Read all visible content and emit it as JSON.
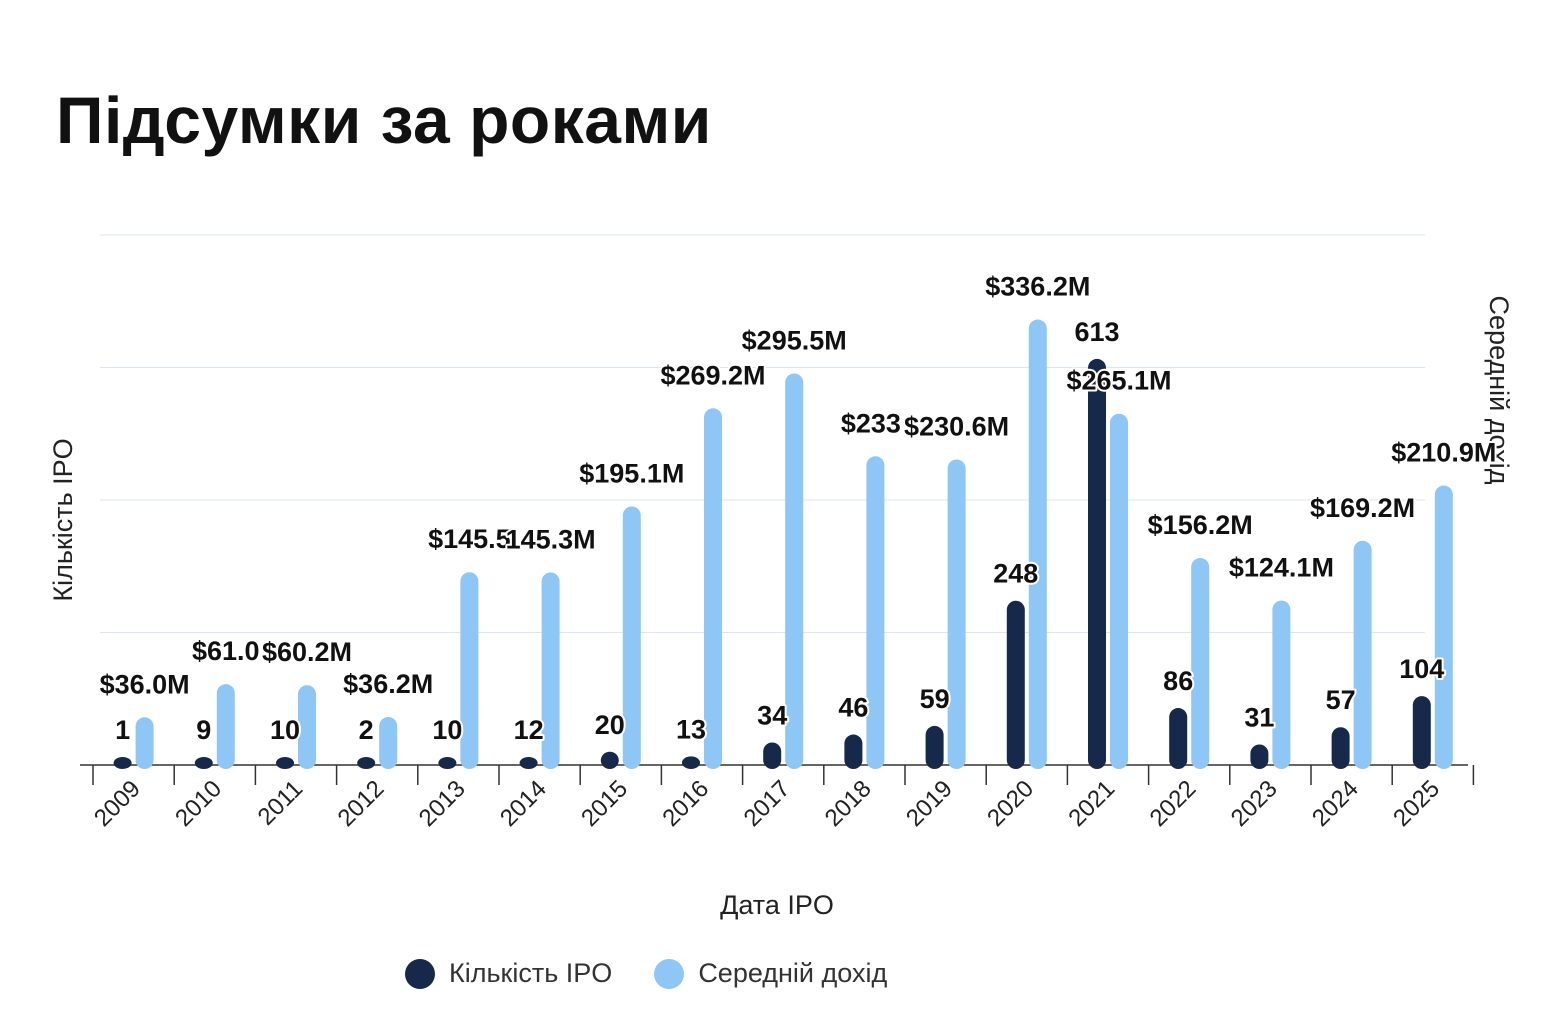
{
  "title": "Підсумки за роками",
  "colors": {
    "count": "#16294a",
    "avg": "#8ec6f5",
    "grid": "#dbe6f0",
    "axis": "#333333"
  },
  "legend": [
    {
      "label": "Кількість IPO",
      "color": "#16294a"
    },
    {
      "label": "Середній дохід",
      "color": "#8ec6f5"
    }
  ],
  "chart_data": {
    "type": "bar",
    "title": "Підсумки за роками",
    "xlabel": "Дата IPO",
    "ylabel_left": "Кількість IPO",
    "ylabel_right": "Середній дохід",
    "categories": [
      "2009",
      "2010",
      "2011",
      "2012",
      "2013",
      "2014",
      "2015",
      "2016",
      "2017",
      "2018",
      "2019",
      "2020",
      "2021",
      "2022",
      "2023",
      "2024",
      "2025"
    ],
    "series": [
      {
        "name": "Кількість IPO",
        "axis": "left",
        "values": [
          1,
          9,
          10,
          2,
          10,
          12,
          20,
          13,
          34,
          46,
          59,
          248,
          613,
          86,
          31,
          57,
          104
        ],
        "labels": [
          "1",
          "9",
          "10",
          "2",
          "10",
          "12",
          "20",
          "13",
          "34",
          "46",
          "59",
          "248",
          "613",
          "86",
          "31",
          "57",
          "104"
        ]
      },
      {
        "name": "Середній дохід",
        "axis": "right",
        "unit": "$M",
        "values": [
          36.0,
          61.0,
          60.2,
          36.2,
          145.5,
          145.3,
          195.1,
          269.2,
          295.5,
          233.0,
          230.6,
          336.2,
          265.1,
          156.2,
          124.1,
          169.2,
          210.9
        ],
        "labels": [
          "$36.0M",
          "$61.0",
          "$60.2M",
          "$36.2M",
          "$145.5",
          "145.3M",
          "$195.1M",
          "$269.2M",
          "$295.5M",
          "$233:",
          "$230.6M",
          "$336.2M",
          "$265.1M",
          "$156.2M",
          "$124.1M",
          "$169.2M",
          "$210.9M"
        ]
      }
    ],
    "left_ylim": [
      0,
      800
    ],
    "right_ylim": [
      0,
      400
    ],
    "grid": true,
    "legend_position": "bottom"
  }
}
